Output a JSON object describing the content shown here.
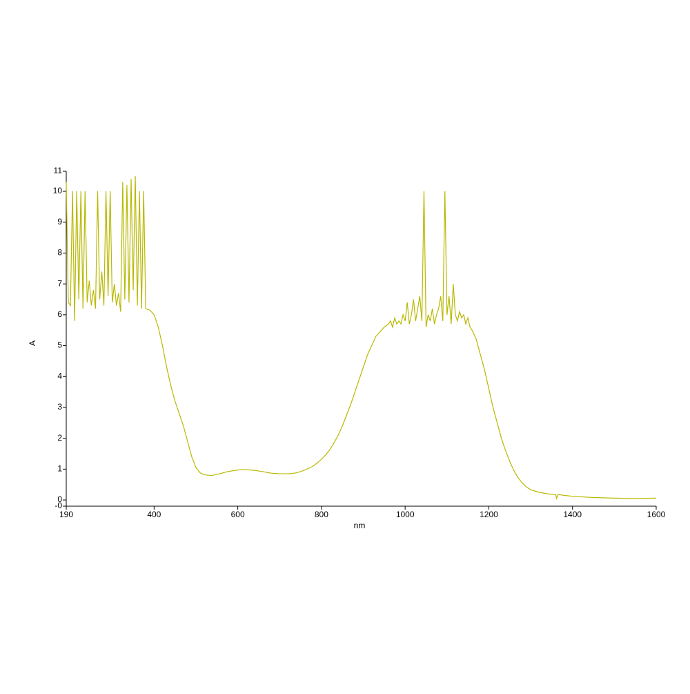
{
  "chart_data": {
    "type": "line",
    "x_label": "nm",
    "y_label": "A",
    "color": "#b8b800",
    "x": [
      190,
      195,
      200,
      205,
      210,
      215,
      220,
      225,
      230,
      235,
      240,
      245,
      250,
      255,
      260,
      265,
      270,
      275,
      280,
      285,
      290,
      295,
      300,
      305,
      310,
      315,
      320,
      325,
      330,
      335,
      340,
      345,
      350,
      355,
      360,
      365,
      370,
      375,
      380,
      390,
      400,
      410,
      420,
      430,
      440,
      450,
      460,
      470,
      480,
      490,
      500,
      510,
      520,
      530,
      540,
      550,
      560,
      570,
      580,
      590,
      600,
      610,
      620,
      630,
      640,
      650,
      660,
      670,
      680,
      690,
      700,
      710,
      720,
      730,
      740,
      750,
      760,
      770,
      780,
      790,
      800,
      810,
      820,
      830,
      840,
      850,
      860,
      870,
      880,
      890,
      900,
      910,
      920,
      930,
      940,
      950,
      960,
      965,
      970,
      975,
      980,
      985,
      990,
      995,
      1000,
      1005,
      1010,
      1015,
      1020,
      1025,
      1030,
      1035,
      1040,
      1045,
      1050,
      1055,
      1060,
      1065,
      1070,
      1075,
      1080,
      1085,
      1090,
      1095,
      1100,
      1105,
      1110,
      1115,
      1120,
      1125,
      1130,
      1135,
      1140,
      1145,
      1150,
      1155,
      1160,
      1170,
      1180,
      1190,
      1200,
      1210,
      1220,
      1230,
      1240,
      1250,
      1260,
      1270,
      1280,
      1290,
      1300,
      1320,
      1340,
      1360,
      1362,
      1365,
      1380,
      1400,
      1450,
      1500,
      1550,
      1600
    ],
    "values": [
      10.3,
      6.4,
      6.3,
      10,
      5.8,
      10,
      6.5,
      10,
      6.2,
      10,
      6.4,
      7.1,
      6.3,
      6.8,
      6.2,
      10,
      6.5,
      7.4,
      6.3,
      10,
      6.6,
      10,
      6.4,
      7.0,
      6.3,
      6.7,
      6.1,
      10.3,
      6.5,
      10.2,
      6.4,
      10.4,
      6.8,
      10.5,
      6.3,
      10,
      6.2,
      10,
      6.2,
      6.15,
      6.0,
      5.6,
      5.0,
      4.3,
      3.7,
      3.2,
      2.8,
      2.4,
      1.9,
      1.4,
      1.05,
      0.88,
      0.82,
      0.8,
      0.8,
      0.83,
      0.86,
      0.9,
      0.93,
      0.95,
      0.97,
      0.98,
      0.98,
      0.97,
      0.96,
      0.94,
      0.92,
      0.89,
      0.87,
      0.86,
      0.85,
      0.85,
      0.85,
      0.86,
      0.88,
      0.92,
      0.97,
      1.03,
      1.1,
      1.2,
      1.32,
      1.46,
      1.63,
      1.85,
      2.1,
      2.4,
      2.75,
      3.1,
      3.5,
      3.9,
      4.3,
      4.7,
      5.0,
      5.3,
      5.45,
      5.6,
      5.7,
      5.8,
      5.6,
      5.9,
      5.7,
      5.8,
      5.7,
      6.0,
      5.8,
      6.4,
      5.7,
      6.0,
      6.5,
      5.8,
      6.2,
      6.6,
      5.8,
      10,
      5.6,
      6.0,
      5.8,
      6.2,
      5.7,
      6.0,
      6.2,
      6.6,
      5.8,
      10,
      6.0,
      6.6,
      5.7,
      7.0,
      6.0,
      5.8,
      6.1,
      5.9,
      6.0,
      5.7,
      5.9,
      5.6,
      5.5,
      5.2,
      4.7,
      4.2,
      3.6,
      3.0,
      2.5,
      2.0,
      1.6,
      1.25,
      0.95,
      0.72,
      0.55,
      0.42,
      0.33,
      0.25,
      0.2,
      0.17,
      0.05,
      0.18,
      0.15,
      0.12,
      0.08,
      0.06,
      0.05,
      0.06
    ],
    "xlim": [
      190,
      1600
    ],
    "xticks": [
      190,
      400,
      600,
      800,
      1000,
      1200,
      1400,
      1600
    ],
    "ylim": [
      -0.2,
      10.65
    ],
    "yticks": [
      {
        "value": -0.2,
        "label": "-0"
      },
      0,
      1,
      2,
      3,
      4,
      5,
      6,
      7,
      8,
      9,
      10,
      {
        "value": 10.65,
        "label": "11"
      }
    ]
  }
}
